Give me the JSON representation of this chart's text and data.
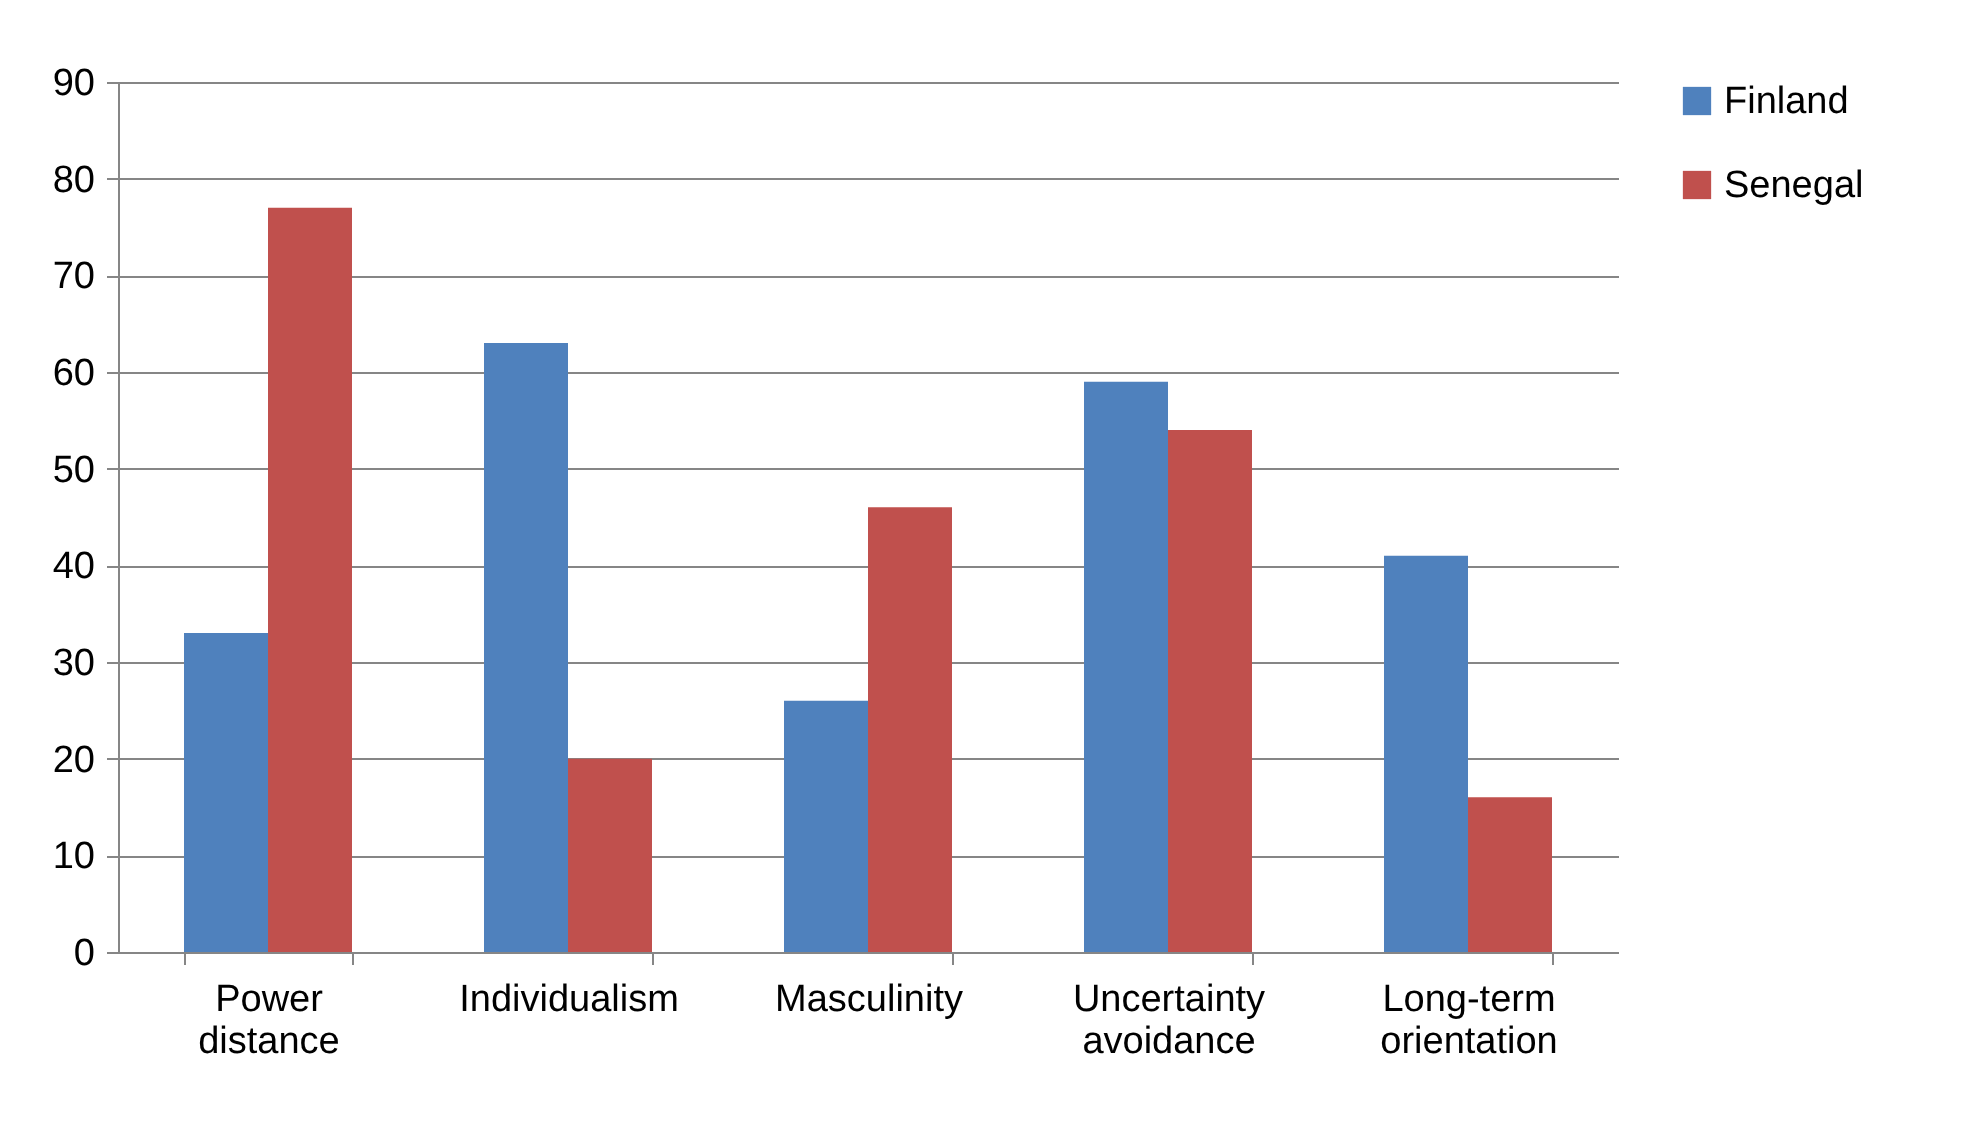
{
  "chart_data": {
    "type": "bar",
    "categories": [
      "Power distance",
      "Individualism",
      "Masculinity",
      "Uncertainty avoidance",
      "Long-term orientation"
    ],
    "series": [
      {
        "name": "Finland",
        "color": "#4f81bd",
        "values": [
          33,
          63,
          26,
          59,
          41
        ]
      },
      {
        "name": "Senegal",
        "color": "#c0504d",
        "values": [
          77,
          20,
          46,
          54,
          16
        ]
      }
    ],
    "ylim": [
      0,
      90
    ],
    "yticks": [
      0,
      10,
      20,
      30,
      40,
      50,
      60,
      70,
      80,
      90
    ],
    "grid": "y",
    "legend": "right"
  }
}
